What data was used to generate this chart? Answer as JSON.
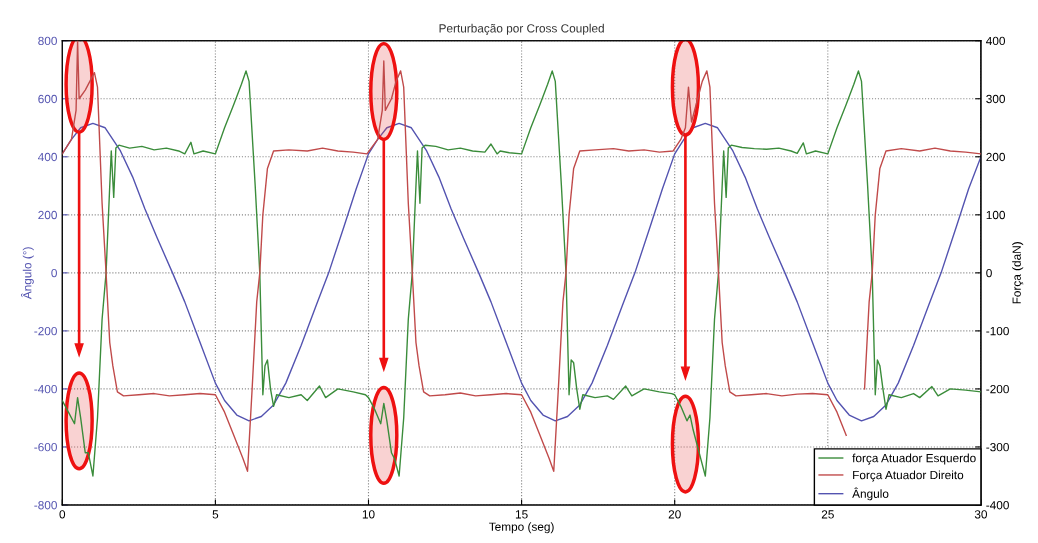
{
  "chart_data": {
    "type": "line",
    "title": "Perturbação por Cross Coupled",
    "xlabel": "Tempo (seg)",
    "ylabel": "Ângulo (°)",
    "y2label": "Força (daN)",
    "xlim": [
      0,
      30
    ],
    "xticks": [
      0,
      5,
      10,
      15,
      20,
      25,
      30
    ],
    "ylim": [
      -800,
      800
    ],
    "yticks": [
      -800,
      -600,
      -400,
      -200,
      0,
      200,
      400,
      600,
      800
    ],
    "y2lim": [
      -400,
      400
    ],
    "y2ticks": [
      -400,
      -300,
      -200,
      -100,
      0,
      100,
      200,
      300,
      400
    ],
    "grid": true,
    "legend": "bottom right",
    "line_style": "solid",
    "marker": "none",
    "series": [
      {
        "name": "força Atuador Esquerdo",
        "color": "#3a8c3a",
        "axis": "y2",
        "x": [
          0.0,
          0.2,
          0.4,
          0.5,
          0.6,
          0.75,
          0.85,
          1.0,
          1.15,
          1.3,
          1.43,
          1.55,
          1.6,
          1.68,
          1.75,
          1.85,
          2.2,
          2.6,
          3.0,
          3.4,
          3.8,
          4.0,
          4.2,
          4.3,
          4.6,
          5.0,
          5.3,
          5.6,
          5.85,
          6.0,
          6.1,
          6.3,
          6.45,
          6.55,
          6.62,
          6.7,
          6.8,
          6.9,
          7.0,
          7.4,
          7.8,
          8.0,
          8.4,
          8.6,
          9.0,
          9.5,
          9.9,
          10.0,
          10.2,
          10.4,
          10.5,
          10.6,
          10.75,
          10.85,
          11.0,
          11.15,
          11.3,
          11.43,
          11.55,
          11.6,
          11.68,
          11.75,
          11.85,
          12.2,
          12.6,
          13.0,
          13.4,
          13.8,
          14.0,
          14.2,
          14.3,
          14.6,
          15.0,
          15.3,
          15.6,
          15.85,
          16.0,
          16.1,
          16.3,
          16.45,
          16.55,
          16.62,
          16.7,
          16.8,
          16.9,
          17.0,
          17.4,
          17.8,
          18.0,
          18.4,
          18.6,
          19.0,
          19.5,
          19.9,
          20.0,
          20.2,
          20.4,
          20.5,
          20.6,
          20.75,
          20.85,
          21.0,
          21.15,
          21.3,
          21.43,
          21.55,
          21.6,
          21.68,
          21.75,
          21.85,
          22.2,
          22.6,
          23.0,
          23.4,
          23.8,
          24.0,
          24.2,
          24.3,
          24.6,
          25.0,
          25.3,
          25.6,
          25.85,
          26.0,
          26.1,
          26.3,
          26.45,
          26.55,
          26.62,
          26.7,
          26.8,
          26.9,
          27.0,
          27.4,
          27.8,
          28.0,
          28.4,
          28.6,
          29.0,
          29.5,
          30.0
        ],
        "values": [
          -220,
          -240,
          -260,
          -215,
          -250,
          -310,
          -310,
          -350,
          -250,
          -80,
          0,
          150,
          210,
          130,
          215,
          220,
          215,
          218,
          212,
          215,
          210,
          205,
          225,
          205,
          210,
          205,
          250,
          290,
          325,
          348,
          330,
          150,
          0,
          -210,
          -160,
          -150,
          -200,
          -230,
          -210,
          -215,
          -210,
          -220,
          -195,
          -215,
          -200,
          -205,
          -210,
          -215,
          -235,
          -260,
          -225,
          -255,
          -310,
          -320,
          -350,
          -250,
          -80,
          0,
          150,
          210,
          120,
          215,
          220,
          218,
          212,
          215,
          210,
          208,
          222,
          205,
          210,
          207,
          205,
          250,
          290,
          325,
          348,
          330,
          150,
          0,
          -210,
          -150,
          -155,
          -200,
          -235,
          -210,
          -215,
          -212,
          -218,
          -195,
          -212,
          -200,
          -205,
          -208,
          -210,
          -230,
          -255,
          -245,
          -270,
          -300,
          -320,
          -350,
          -250,
          -80,
          0,
          150,
          210,
          130,
          215,
          220,
          216,
          214,
          213,
          215,
          210,
          206,
          224,
          205,
          210,
          205,
          250,
          290,
          325,
          348,
          330,
          150,
          0,
          -210,
          -150,
          -160,
          -200,
          -235,
          -210,
          -215,
          -208,
          -215,
          -196,
          -212,
          -200,
          -202,
          -205
        ]
      },
      {
        "name": "Força Atuador Direito",
        "color": "#c04a4a",
        "axis": "y2",
        "x": [
          0.0,
          0.3,
          0.45,
          0.5,
          0.55,
          0.75,
          0.9,
          1.05,
          1.15,
          1.3,
          1.43,
          1.55,
          1.65,
          1.8,
          2.0,
          2.5,
          3.0,
          3.5,
          4.0,
          4.5,
          5.0,
          5.3,
          5.6,
          5.9,
          6.05,
          6.2,
          6.35,
          6.45,
          6.55,
          6.7,
          6.9,
          7.4,
          8.0,
          8.5,
          9.0,
          9.5,
          9.95,
          10.3,
          10.45,
          10.5,
          10.55,
          10.75,
          10.9,
          11.05,
          11.15,
          11.3,
          11.43,
          11.55,
          11.65,
          11.8,
          12.0,
          12.5,
          13.0,
          13.5,
          14.0,
          14.5,
          15.0,
          15.3,
          15.6,
          15.9,
          16.05,
          16.2,
          16.35,
          16.45,
          16.55,
          16.7,
          16.9,
          17.4,
          18.0,
          18.5,
          19.0,
          19.5,
          19.95,
          20.2,
          20.35,
          20.45,
          20.55,
          20.75,
          20.9,
          21.05,
          21.15,
          21.3,
          21.43,
          21.55,
          21.65,
          21.8,
          22.0,
          22.5,
          23.0,
          23.5,
          24.0,
          24.5,
          25.0,
          25.3,
          25.6,
          25.9,
          26.05,
          26.2,
          26.35,
          26.45,
          26.55,
          26.7,
          26.9,
          27.4,
          28.0,
          28.5,
          29.0,
          29.5,
          30.0
        ],
        "values": [
          205,
          230,
          280,
          400,
          300,
          315,
          330,
          345,
          320,
          120,
          0,
          -120,
          -160,
          -205,
          -212,
          -210,
          -208,
          -212,
          -210,
          -208,
          -210,
          -240,
          -280,
          -320,
          -342,
          -200,
          -50,
          0,
          100,
          180,
          210,
          212,
          210,
          215,
          210,
          208,
          205,
          230,
          280,
          365,
          280,
          300,
          330,
          348,
          320,
          120,
          0,
          -120,
          -160,
          -205,
          -212,
          -210,
          -207,
          -212,
          -210,
          -208,
          -210,
          -240,
          -280,
          -320,
          -342,
          -200,
          -50,
          0,
          100,
          180,
          210,
          212,
          214,
          210,
          212,
          208,
          210,
          230,
          250,
          320,
          260,
          300,
          330,
          348,
          320,
          120,
          0,
          -120,
          -160,
          -205,
          -212,
          -210,
          -208,
          -212,
          -209,
          -208,
          -210,
          -240,
          -280,
          null,
          null,
          -200,
          -50,
          0,
          100,
          180,
          210,
          214,
          210,
          215,
          210,
          208,
          205
        ]
      },
      {
        "name": "Ângulo",
        "color": "#5353b0",
        "axis": "y",
        "x": [
          0,
          0.3,
          0.6,
          1.0,
          1.4,
          1.9,
          2.3,
          2.7,
          3.1,
          3.6,
          4.0,
          4.5,
          5.0,
          5.3,
          5.7,
          6.1,
          6.5,
          6.9,
          7.3,
          7.8,
          8.3,
          8.7,
          9.2,
          9.6,
          10.0,
          10.3,
          10.6,
          11.0,
          11.4,
          11.9,
          12.3,
          12.7,
          13.1,
          13.6,
          14.0,
          14.5,
          15.0,
          15.3,
          15.7,
          16.1,
          16.5,
          16.9,
          17.3,
          17.8,
          18.3,
          18.7,
          19.2,
          19.6,
          20.0,
          20.3,
          20.6,
          21.0,
          21.4,
          21.9,
          22.3,
          22.7,
          23.1,
          23.6,
          24.0,
          24.5,
          25.0,
          25.3,
          25.7,
          26.1,
          26.5,
          26.9,
          27.3,
          27.8,
          28.3,
          28.7,
          29.2,
          29.6,
          30.0
        ],
        "values": [
          410,
          460,
          500,
          515,
          500,
          420,
          330,
          220,
          120,
          0,
          -100,
          -240,
          -380,
          -440,
          -490,
          -510,
          -495,
          -455,
          -380,
          -250,
          -110,
          0,
          160,
          290,
          410,
          460,
          500,
          515,
          500,
          420,
          330,
          220,
          120,
          0,
          -100,
          -240,
          -380,
          -440,
          -490,
          -510,
          -495,
          -455,
          -380,
          -250,
          -110,
          0,
          160,
          290,
          410,
          460,
          500,
          515,
          500,
          420,
          330,
          220,
          120,
          0,
          -100,
          -240,
          -380,
          -440,
          -490,
          -510,
          -495,
          -455,
          -380,
          -250,
          -110,
          0,
          160,
          290,
          400
        ]
      }
    ]
  }
}
